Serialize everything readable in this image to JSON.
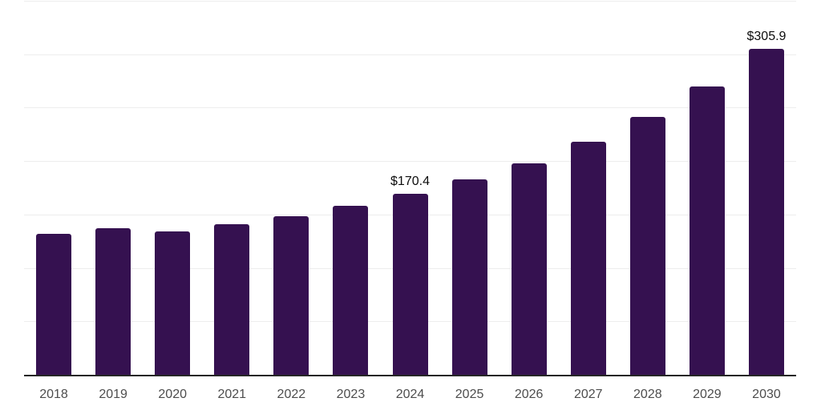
{
  "chart_data": {
    "type": "bar",
    "categories": [
      "2018",
      "2019",
      "2020",
      "2021",
      "2022",
      "2023",
      "2024",
      "2025",
      "2026",
      "2027",
      "2028",
      "2029",
      "2030"
    ],
    "values": [
      133.0,
      138.1,
      135.2,
      141.9,
      149.3,
      159.0,
      170.4,
      183.7,
      199.0,
      218.9,
      242.0,
      270.3,
      305.9
    ],
    "value_labels": {
      "2024": "$170.4",
      "2030": "$305.9"
    },
    "xlabel": "",
    "ylabel": "",
    "ylim": [
      0,
      350
    ],
    "gridline_values": [
      50,
      100,
      150,
      200,
      250,
      300,
      350
    ],
    "grid": "horizontal",
    "y_tick_labels_visible": false,
    "legend": "none",
    "colors": {
      "bar": "#351150",
      "gridline": "#ededed",
      "axis_line": "#262626",
      "x_tick_label": "#4d4d4d",
      "value_label": "#0d0d0d",
      "background": "#ffffff"
    }
  }
}
